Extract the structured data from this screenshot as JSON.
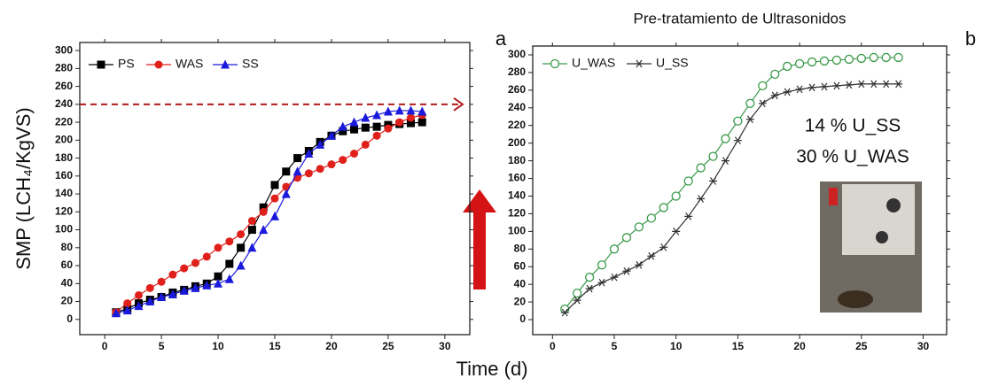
{
  "chart_data": [
    {
      "type": "line",
      "panel_label": "a",
      "ylabel": "SMP (LCH₄/KgVS)",
      "xlabel": "Time (d)",
      "x": [
        1,
        2,
        3,
        4,
        5,
        6,
        7,
        8,
        9,
        10,
        11,
        12,
        13,
        14,
        15,
        16,
        17,
        18,
        19,
        20,
        21,
        22,
        23,
        24,
        25,
        26,
        27,
        28
      ],
      "xlim": [
        -2.2,
        32.2
      ],
      "xticks": [
        0,
        5,
        10,
        15,
        20,
        25,
        30
      ],
      "ylim": [
        -17,
        309
      ],
      "yticks": [
        0,
        20,
        40,
        60,
        80,
        100,
        120,
        140,
        160,
        180,
        200,
        220,
        240,
        260,
        280,
        300
      ],
      "hline": 240,
      "hline_color": "#b01c1c",
      "series": [
        {
          "name": "PS",
          "color": "#000000",
          "marker": "square",
          "values": [
            8,
            12,
            18,
            22,
            25,
            30,
            33,
            37,
            40,
            48,
            62,
            80,
            100,
            125,
            150,
            165,
            180,
            188,
            198,
            205,
            210,
            212,
            214,
            215,
            217,
            218,
            219,
            220
          ]
        },
        {
          "name": "WAS",
          "color": "#e0201b",
          "marker": "circle",
          "values": [
            8,
            18,
            27,
            35,
            42,
            50,
            57,
            63,
            70,
            80,
            87,
            95,
            110,
            120,
            135,
            148,
            158,
            163,
            168,
            173,
            178,
            185,
            195,
            205,
            213,
            220,
            225,
            228
          ]
        },
        {
          "name": "SS",
          "color": "#1a1adc",
          "marker": "triangle",
          "values": [
            7,
            10,
            15,
            20,
            25,
            28,
            32,
            35,
            38,
            40,
            45,
            60,
            80,
            100,
            115,
            140,
            165,
            185,
            195,
            205,
            215,
            220,
            225,
            228,
            232,
            233,
            233,
            232
          ]
        }
      ]
    },
    {
      "type": "line",
      "panel_label": "b",
      "title": "Pre-tratamiento de Ultrasonidos",
      "x": [
        1,
        2,
        3,
        4,
        5,
        6,
        7,
        8,
        9,
        10,
        11,
        12,
        13,
        14,
        15,
        16,
        17,
        18,
        19,
        20,
        21,
        22,
        23,
        24,
        25,
        26,
        27,
        28
      ],
      "xlim": [
        -1.6,
        31.9
      ],
      "xticks": [
        0,
        5,
        10,
        15,
        20,
        25,
        30
      ],
      "ylim": [
        -17,
        310
      ],
      "yticks": [
        0,
        20,
        40,
        60,
        80,
        100,
        120,
        140,
        160,
        180,
        200,
        220,
        240,
        260,
        280,
        300
      ],
      "annotations": [
        "14 % U_SS",
        "30 % U_WAS"
      ],
      "series": [
        {
          "name": "U_WAS",
          "color": "#3a9a4a",
          "marker": "open-circle",
          "values": [
            12,
            30,
            48,
            62,
            80,
            93,
            105,
            115,
            127,
            140,
            157,
            172,
            185,
            205,
            225,
            245,
            265,
            278,
            287,
            290,
            292,
            293,
            294,
            295,
            296,
            297,
            297,
            297
          ]
        },
        {
          "name": "U_SS",
          "color": "#333333",
          "marker": "star",
          "values": [
            8,
            22,
            35,
            42,
            48,
            55,
            62,
            72,
            82,
            100,
            117,
            137,
            157,
            180,
            203,
            227,
            245,
            254,
            258,
            261,
            263,
            264,
            265,
            266,
            267,
            267,
            267,
            267
          ]
        }
      ]
    }
  ]
}
